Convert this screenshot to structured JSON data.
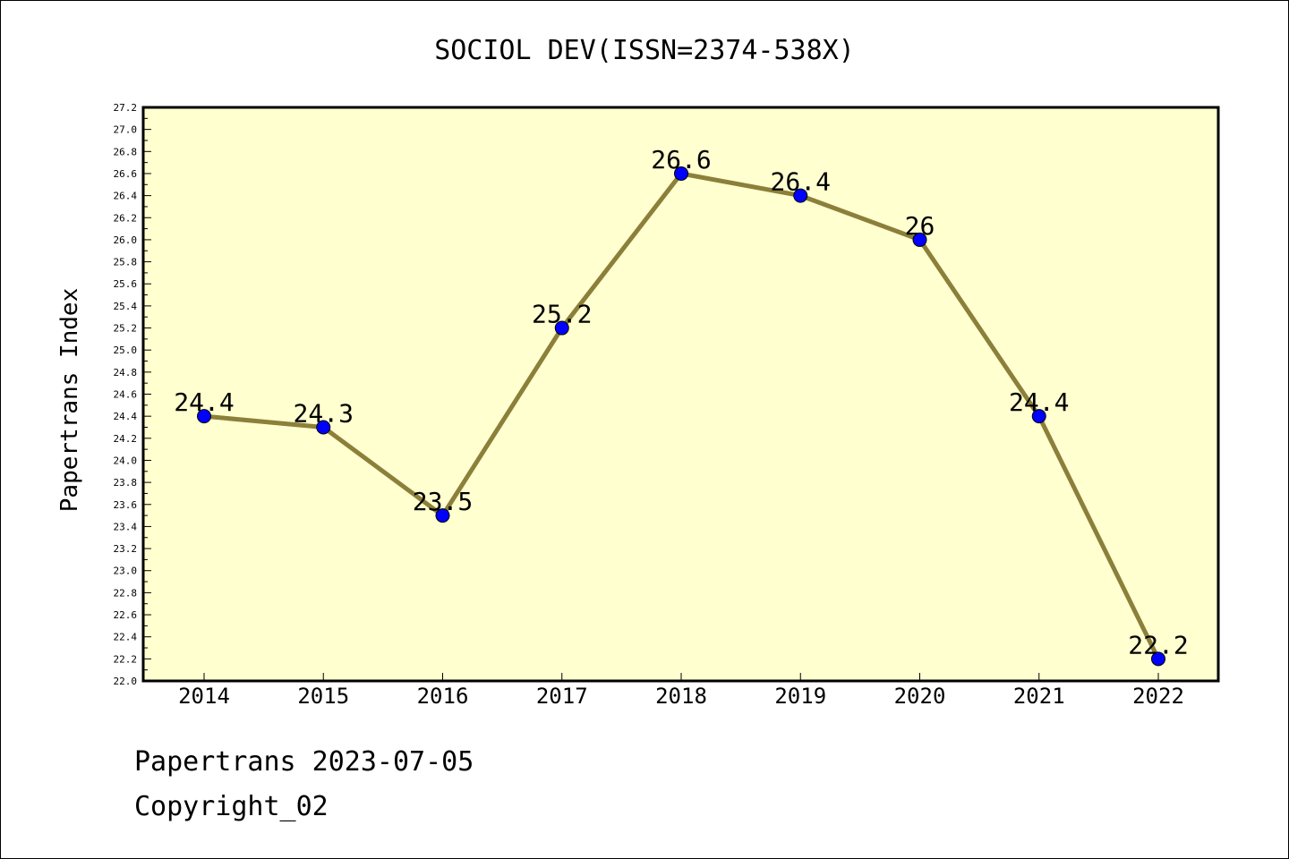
{
  "chart_data": {
    "type": "line",
    "title": "SOCIOL DEV(ISSN=2374-538X)",
    "xlabel": "",
    "ylabel": "Papertrans Index",
    "categories": [
      "2014",
      "2015",
      "2016",
      "2017",
      "2018",
      "2019",
      "2020",
      "2021",
      "2022"
    ],
    "series": [
      {
        "values": [
          24.4,
          24.3,
          23.5,
          25.2,
          26.6,
          26.4,
          26.0,
          24.4,
          22.2
        ]
      }
    ],
    "data_labels": [
      "24.4",
      "24.3",
      "23.5",
      "25.2",
      "26.6",
      "26.4",
      "26",
      "24.4",
      "22.2"
    ],
    "ylim": [
      22.0,
      27.2
    ],
    "y_ticks": [
      "22.0",
      "22.2",
      "22.4",
      "22.6",
      "22.8",
      "23.0",
      "23.2",
      "23.4",
      "23.6",
      "23.8",
      "24.0",
      "24.2",
      "24.4",
      "24.6",
      "24.8",
      "25.0",
      "25.2",
      "25.4",
      "25.6",
      "25.8",
      "26.0",
      "26.2",
      "26.4",
      "26.6",
      "26.8",
      "27.0",
      "27.2"
    ],
    "grid": false,
    "legend": "none",
    "colors": {
      "plot_background": "#ffffd0",
      "line": "#8b7f3a",
      "marker": "#0000ff"
    }
  },
  "footer": {
    "line1": "Papertrans 2023-07-05",
    "line2": "Copyright_02"
  }
}
